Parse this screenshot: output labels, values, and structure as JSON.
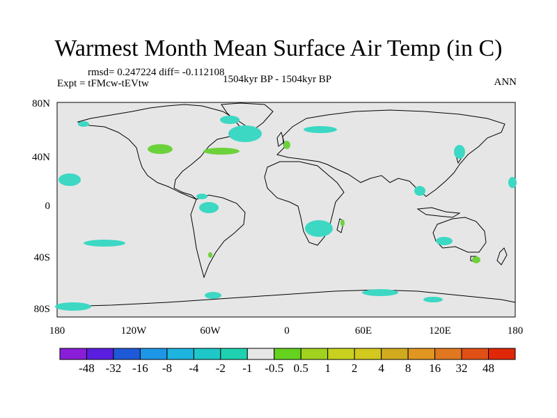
{
  "title": "Warmest Month Mean Surface Air Temp (in C)",
  "stats_line": "rmsd= 0.247224  diff= -0.112108",
  "experiment_line": "Expt = tFMcw-tEVtw",
  "period_line": "1504kyr BP - 1504kyr BP",
  "season_label": "ANN",
  "map": {
    "background_color": "#e6e6e6",
    "lat_ticks": [
      "80N",
      "40N",
      "0",
      "40S",
      "80S"
    ],
    "lon_ticks": [
      "180",
      "120W",
      "60W",
      "0",
      "60E",
      "120E",
      "180"
    ]
  },
  "colorbar": {
    "colors": [
      "#8a1ed8",
      "#5a1ee0",
      "#1e5ad8",
      "#1e96e8",
      "#1eb4e0",
      "#1ec8c8",
      "#1ed2b0",
      "#e6e6e6",
      "#64d21e",
      "#a0d21e",
      "#c8d21e",
      "#d2c81e",
      "#d2aa1e",
      "#e09620",
      "#e07820",
      "#e05014",
      "#e02808"
    ],
    "labels": [
      "-48",
      "-32",
      "-16",
      "-8",
      "-4",
      "-2",
      "-1",
      "-0.5",
      "0.5",
      "1",
      "2",
      "4",
      "8",
      "16",
      "32",
      "48"
    ]
  },
  "anomaly_colors": {
    "negative_small": "#3cd8c4",
    "positive_small": "#6cd23c"
  }
}
